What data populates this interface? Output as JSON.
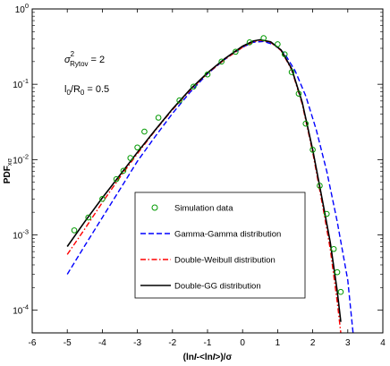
{
  "chart_data": {
    "type": "line",
    "xlabel_parts": [
      "(ln",
      "I",
      "-<ln",
      "I",
      ">)/σ"
    ],
    "ylabel_parts": [
      "PDF",
      "xσ"
    ],
    "xlim": [
      -6,
      4
    ],
    "ylim": [
      5e-05,
      1
    ],
    "yscale": "log",
    "x_ticks": [
      "-6",
      "-5",
      "-4",
      "-3",
      "-2",
      "-1",
      "0",
      "1",
      "2",
      "3",
      "4"
    ],
    "y_ticks": [
      {
        "base": "10",
        "exp": "-4",
        "value": 0.0001
      },
      {
        "base": "10",
        "exp": "-3",
        "value": 0.001
      },
      {
        "base": "10",
        "exp": "-2",
        "value": 0.01
      },
      {
        "base": "10",
        "exp": "-1",
        "value": 0.1
      },
      {
        "base": "10",
        "exp": "0",
        "value": 1
      }
    ],
    "annotations": {
      "sigma_symbol": "σ",
      "sigma_sup": "2",
      "sigma_sub": "Rytov",
      "sigma_value": "= 2",
      "ratio_l": "l",
      "ratio_l_sub": "0",
      "ratio_r": "/R",
      "ratio_r_sub": "0",
      "ratio_value": "= 0.5"
    },
    "legend": {
      "placement": "lower-center",
      "entries": [
        {
          "label": "Simulation data",
          "style": "marker"
        },
        {
          "label": "Gamma-Gamma distribution",
          "style": "dash"
        },
        {
          "label": "Double-Weibull distribution",
          "style": "dashdot"
        },
        {
          "label": "Double-GG distribution",
          "style": "solid"
        }
      ]
    },
    "series": [
      {
        "name": "Simulation data",
        "style": "marker",
        "color": "#009900",
        "points": [
          [
            -4.8,
            0.00115
          ],
          [
            -4.4,
            0.0017
          ],
          [
            -4.0,
            0.003
          ],
          [
            -3.6,
            0.0055
          ],
          [
            -3.4,
            0.0071
          ],
          [
            -3.2,
            0.0105
          ],
          [
            -3.0,
            0.0145
          ],
          [
            -2.8,
            0.0235
          ],
          [
            -2.4,
            0.036
          ],
          [
            -1.8,
            0.061
          ],
          [
            -1.4,
            0.093
          ],
          [
            -1.0,
            0.135
          ],
          [
            -0.6,
            0.2
          ],
          [
            -0.2,
            0.27
          ],
          [
            0.2,
            0.36
          ],
          [
            0.6,
            0.41
          ],
          [
            1.0,
            0.34
          ],
          [
            1.2,
            0.25
          ],
          [
            1.4,
            0.145
          ],
          [
            1.6,
            0.075
          ],
          [
            1.8,
            0.03
          ],
          [
            2.0,
            0.0135
          ],
          [
            2.2,
            0.0045
          ],
          [
            2.4,
            0.0019
          ],
          [
            2.6,
            0.00065
          ],
          [
            2.7,
            0.00032
          ],
          [
            2.8,
            0.000175
          ]
        ]
      },
      {
        "name": "Gamma-Gamma distribution",
        "style": "dash",
        "color": "#0000ff",
        "points": [
          [
            -5.0,
            0.0003
          ],
          [
            -4.5,
            0.00072
          ],
          [
            -4.0,
            0.0017
          ],
          [
            -3.5,
            0.004
          ],
          [
            -3.0,
            0.0095
          ],
          [
            -2.5,
            0.02
          ],
          [
            -2.0,
            0.041
          ],
          [
            -1.5,
            0.078
          ],
          [
            -1.0,
            0.138
          ],
          [
            -0.5,
            0.215
          ],
          [
            0.0,
            0.31
          ],
          [
            0.3,
            0.36
          ],
          [
            0.6,
            0.37
          ],
          [
            0.9,
            0.335
          ],
          [
            1.2,
            0.255
          ],
          [
            1.5,
            0.15
          ],
          [
            1.8,
            0.07
          ],
          [
            2.1,
            0.025
          ],
          [
            2.4,
            0.007
          ],
          [
            2.7,
            0.0015
          ],
          [
            3.0,
            0.00025
          ],
          [
            3.15,
            5e-05
          ]
        ]
      },
      {
        "name": "Double-Weibull distribution",
        "style": "dashdot",
        "color": "#ff0000",
        "points": [
          [
            -5.0,
            0.00055
          ],
          [
            -4.5,
            0.0012
          ],
          [
            -4.0,
            0.0027
          ],
          [
            -3.5,
            0.0058
          ],
          [
            -3.0,
            0.012
          ],
          [
            -2.5,
            0.024
          ],
          [
            -2.0,
            0.046
          ],
          [
            -1.5,
            0.083
          ],
          [
            -1.0,
            0.14
          ],
          [
            -0.5,
            0.215
          ],
          [
            0.0,
            0.31
          ],
          [
            0.3,
            0.365
          ],
          [
            0.5,
            0.385
          ],
          [
            0.8,
            0.36
          ],
          [
            1.1,
            0.28
          ],
          [
            1.4,
            0.155
          ],
          [
            1.7,
            0.055
          ],
          [
            2.0,
            0.0125
          ],
          [
            2.3,
            0.0022
          ],
          [
            2.5,
            0.00065
          ],
          [
            2.7,
            0.00013
          ],
          [
            2.8,
            5e-05
          ]
        ]
      },
      {
        "name": "Double-GG distribution",
        "style": "solid",
        "color": "#000000",
        "points": [
          [
            -5.0,
            0.0007
          ],
          [
            -4.5,
            0.0015
          ],
          [
            -4.0,
            0.0031
          ],
          [
            -3.5,
            0.0062
          ],
          [
            -3.0,
            0.0125
          ],
          [
            -2.5,
            0.0245
          ],
          [
            -2.0,
            0.047
          ],
          [
            -1.5,
            0.085
          ],
          [
            -1.0,
            0.142
          ],
          [
            -0.5,
            0.22
          ],
          [
            0.0,
            0.32
          ],
          [
            0.3,
            0.375
          ],
          [
            0.5,
            0.39
          ],
          [
            0.8,
            0.365
          ],
          [
            1.1,
            0.285
          ],
          [
            1.4,
            0.16
          ],
          [
            1.7,
            0.058
          ],
          [
            2.0,
            0.0135
          ],
          [
            2.3,
            0.0025
          ],
          [
            2.5,
            0.0008
          ],
          [
            2.7,
            0.00018
          ],
          [
            2.8,
            7e-05
          ]
        ]
      }
    ]
  }
}
